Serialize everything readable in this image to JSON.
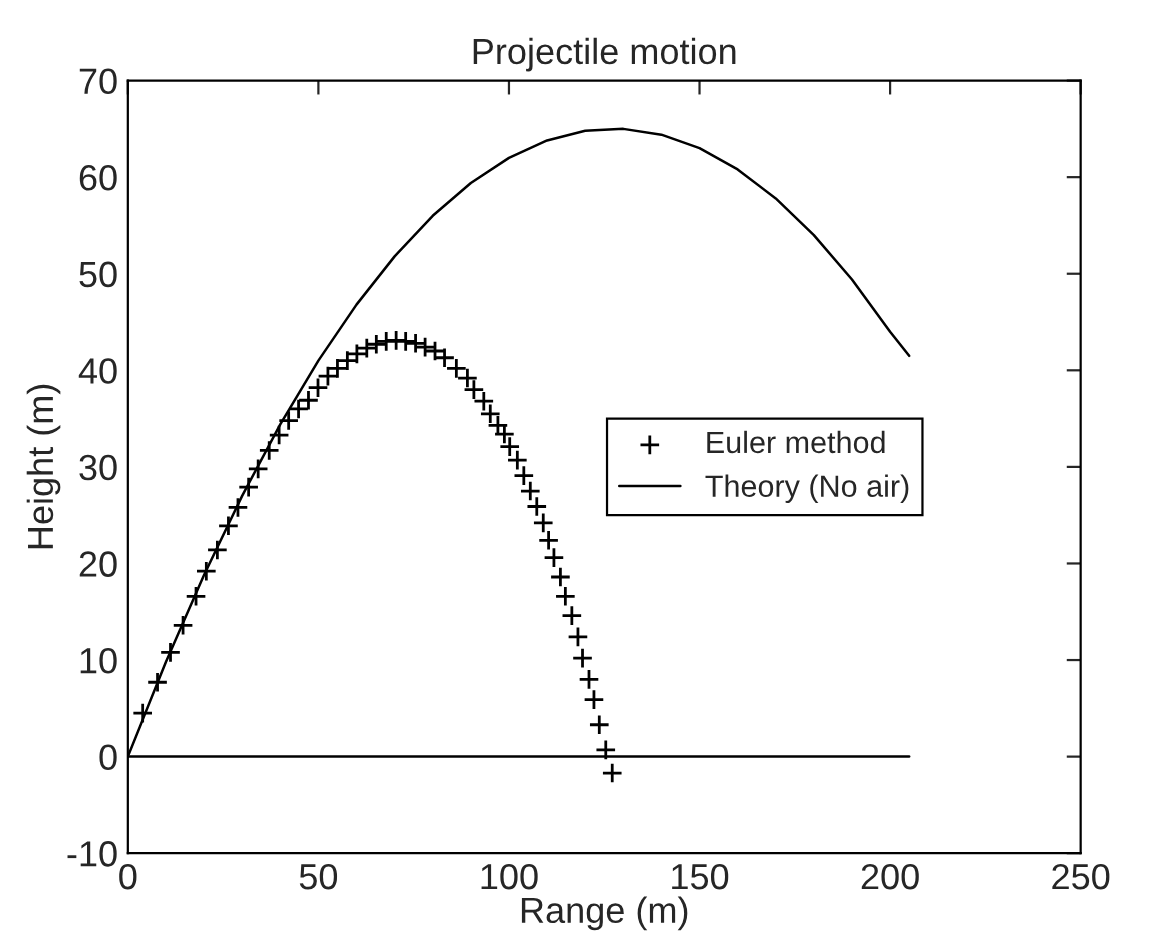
{
  "chart_data": {
    "type": "scatter",
    "title": "Projectile motion",
    "xlabel": "Range (m)",
    "ylabel": "Height (m)",
    "xlim": [
      0,
      250
    ],
    "xticks": [
      0,
      50,
      100,
      150,
      200,
      250
    ],
    "ylim": [
      -10,
      70
    ],
    "yticks": [
      -10,
      0,
      10,
      20,
      30,
      40,
      50,
      60,
      70
    ],
    "grid": false,
    "legend": "right",
    "series": [
      {
        "name": "Euler method",
        "marker": "cross",
        "color": "#000000",
        "x": [
          3.9,
          7.8,
          11.2,
          14.5,
          17.9,
          20.6,
          23.5,
          26.4,
          28.9,
          31.7,
          34.2,
          37.1,
          39.7,
          42.2,
          44.8,
          47.4,
          49.9,
          52.5,
          55.0,
          57.6,
          60.1,
          62.7,
          65.2,
          67.8,
          70.4,
          72.9,
          75.5,
          78.0,
          80.6,
          83.1,
          86.2,
          89.1,
          90.8,
          93.4,
          95.1,
          97.1,
          98.8,
          100.2,
          102.2,
          103.9,
          105.6,
          107.3,
          109.0,
          110.4,
          111.8,
          113.5,
          114.8,
          116.5,
          118.1,
          119.3,
          121.0,
          122.3,
          123.7,
          125.4,
          127.1
        ],
        "values": [
          4.5,
          7.7,
          10.8,
          13.6,
          16.6,
          19.2,
          21.4,
          23.9,
          25.8,
          27.9,
          29.8,
          31.7,
          33.3,
          34.8,
          36.0,
          36.9,
          38.2,
          39.4,
          40.2,
          41.0,
          41.7,
          42.3,
          42.7,
          43.0,
          43.1,
          43.0,
          42.8,
          42.4,
          42.0,
          41.3,
          40.2,
          39.2,
          38.0,
          36.8,
          35.5,
          34.3,
          33.4,
          32.1,
          30.7,
          29.1,
          27.5,
          25.9,
          24.2,
          22.4,
          20.6,
          18.6,
          16.6,
          14.6,
          12.4,
          10.2,
          8.0,
          5.9,
          3.3,
          0.7,
          -1.7
        ]
      },
      {
        "name": "Theory (No air)",
        "type": "line",
        "line_style": "solid",
        "color": "#000000",
        "x": [
          0,
          10,
          20,
          30,
          40,
          50,
          60,
          70,
          80,
          90,
          100,
          110,
          120,
          130,
          140,
          150,
          160,
          170,
          180,
          190,
          200,
          205
        ],
        "values": [
          0,
          9.8,
          18.8,
          27.0,
          34.4,
          41.0,
          46.8,
          51.8,
          56.0,
          59.4,
          62.0,
          63.8,
          64.8,
          65.0,
          64.4,
          63.0,
          60.8,
          57.8,
          54.0,
          49.4,
          44.0,
          41.5
        ]
      },
      {
        "type": "line",
        "line_style": "solid",
        "color": "#000000",
        "x": [
          0,
          205
        ],
        "values": [
          0,
          0
        ]
      }
    ]
  }
}
